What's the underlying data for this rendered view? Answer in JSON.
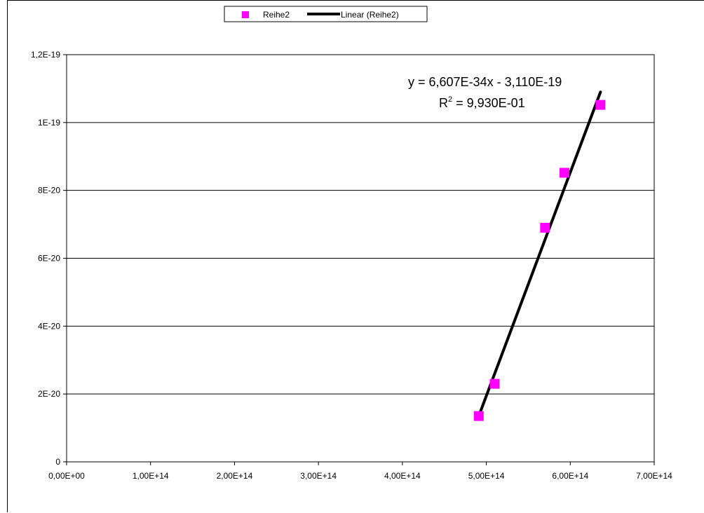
{
  "chart_data": {
    "type": "scatter",
    "title": "",
    "xlabel": "",
    "ylabel": "",
    "xlim": [
      0,
      700000000000000.0
    ],
    "ylim": [
      0,
      1.2e-19
    ],
    "x_ticks": [
      0,
      100000000000000.0,
      200000000000000.0,
      300000000000000.0,
      400000000000000.0,
      500000000000000.0,
      600000000000000.0,
      700000000000000.0
    ],
    "x_tick_labels": [
      "0,00E+00",
      "1,00E+14",
      "2,00E+14",
      "3,00E+14",
      "4,00E+14",
      "5,00E+14",
      "6,00E+14",
      "7,00E+14"
    ],
    "y_ticks": [
      0,
      2e-20,
      4e-20,
      6e-20,
      8e-20,
      1e-19,
      1.2e-19
    ],
    "y_tick_labels": [
      "0",
      "2E-20",
      "4E-20",
      "6E-20",
      "8E-20",
      "1E-19",
      "1,2E-19"
    ],
    "grid": "horizontal",
    "legend_position": "top",
    "series": [
      {
        "name": "Reihe2",
        "color": "#ff00ff",
        "marker": "square",
        "x": [
          491000000000000.0,
          510000000000000.0,
          570000000000000.0,
          593000000000000.0,
          636000000000000.0
        ],
        "y": [
          1.35e-20,
          2.3e-20,
          6.9e-20,
          8.52e-20,
          1.052e-19
        ]
      }
    ],
    "trendline": {
      "name": "Linear (Reihe2)",
      "color": "#000000",
      "x_start": 491000000000000.0,
      "x_end": 636000000000000.0,
      "y_start": 1.35e-20,
      "y_end": 1.09e-19
    },
    "equation": "y = 6,607E-34x - 3,110E-19",
    "r2_label": "R",
    "r2_superscript": "2",
    "r2_value": " = 9,930E-01"
  }
}
